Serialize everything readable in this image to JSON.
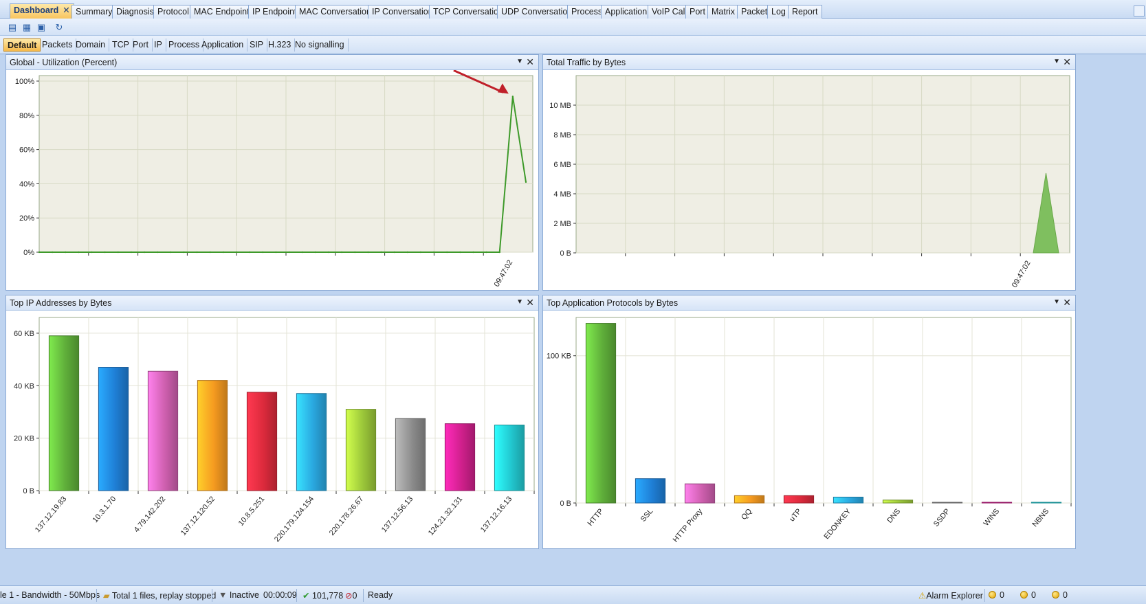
{
  "tabs": [
    {
      "label": "Dashboard",
      "active": true,
      "closable": true
    },
    {
      "label": "Summary"
    },
    {
      "label": "Diagnosis"
    },
    {
      "label": "Protocol"
    },
    {
      "label": "MAC Endpoint"
    },
    {
      "label": "IP Endpoint"
    },
    {
      "label": "MAC Conversation"
    },
    {
      "label": "IP Conversation"
    },
    {
      "label": "TCP Conversation"
    },
    {
      "label": "UDP Conversation"
    },
    {
      "label": "Process"
    },
    {
      "label": "Application"
    },
    {
      "label": "VoIP Call"
    },
    {
      "label": "Port"
    },
    {
      "label": "Matrix"
    },
    {
      "label": "Packet"
    },
    {
      "label": "Log"
    },
    {
      "label": "Report"
    }
  ],
  "tab_close_glyph": "✕",
  "toolbar": {
    "buttons": [
      {
        "name": "new-view-icon",
        "glyph": "▤"
      },
      {
        "name": "edit-view-icon",
        "glyph": "▦"
      },
      {
        "name": "delete-view-icon",
        "glyph": "▣"
      },
      {
        "name": "refresh-icon",
        "glyph": "↻"
      }
    ]
  },
  "filters": [
    "Default",
    "Packets",
    "Domain",
    "TCP",
    "Port",
    "IP",
    "Process",
    "Application",
    "SIP",
    "H.323",
    "No signalling"
  ],
  "panels": {
    "utilization": {
      "title": "Global - Utilization (Percent)",
      "dropdown": "▼",
      "close": "✕"
    },
    "traffic": {
      "title": "Total Traffic by Bytes",
      "dropdown": "▼",
      "close": "✕"
    },
    "top_ip": {
      "title": "Top IP Addresses by Bytes",
      "dropdown": "▼",
      "close": "✕"
    },
    "top_app": {
      "title": "Top Application Protocols by Bytes",
      "dropdown": "▼",
      "close": "✕"
    }
  },
  "colors": {
    "plot_bg": "#efeee4",
    "grid": "#d7d9c4",
    "line": "#3e9a2a",
    "area": "#7fbf5f",
    "annotation_arrow": "#c0202a",
    "bar_palette": [
      "#5fae3a",
      "#1f7fd6",
      "#d060b0",
      "#f59a20",
      "#dc2a3c",
      "#2aa8e0",
      "#9cc83a",
      "#8c8c8c",
      "#d0208c",
      "#22c8d0"
    ]
  },
  "chart_data": [
    {
      "type": "line",
      "panel": "utilization",
      "title": "Global - Utilization (Percent)",
      "yticks": [
        "0%",
        "20%",
        "40%",
        "60%",
        "80%",
        "100%"
      ],
      "ylim": [
        0,
        100
      ],
      "xtick_labels": [
        "09:47:02"
      ],
      "series": [
        {
          "x": [
            0,
            1,
            2,
            3,
            4,
            5,
            6,
            7,
            8,
            9,
            10,
            11,
            12,
            13,
            14,
            15,
            16,
            17,
            18,
            19,
            20,
            21,
            22,
            23,
            24,
            25,
            26,
            27,
            28,
            29,
            30,
            31,
            32,
            33,
            34,
            35,
            36,
            37
          ],
          "values": [
            0,
            0,
            0,
            0,
            0,
            0,
            0,
            0,
            0,
            0,
            0,
            0,
            0,
            0,
            0,
            0,
            0,
            0,
            0,
            0,
            0,
            0,
            0,
            0,
            0,
            0,
            0,
            0,
            0,
            0,
            0,
            0,
            0,
            0,
            0,
            0,
            91,
            41
          ]
        }
      ],
      "annotation": "arrow pointing at peak"
    },
    {
      "type": "area",
      "panel": "traffic",
      "title": "Total Traffic by Bytes",
      "yticks": [
        "0 B",
        "2 MB",
        "4 MB",
        "6 MB",
        "8 MB",
        "10 MB"
      ],
      "ylim": [
        0,
        12
      ],
      "y_unit": "MB",
      "xtick_labels": [
        "09:47:02"
      ],
      "series": [
        {
          "x": [
            36,
            37,
            38
          ],
          "values": [
            0,
            5.4,
            0
          ]
        }
      ]
    },
    {
      "type": "bar",
      "panel": "top_ip",
      "title": "Top IP Addresses by Bytes",
      "yticks": [
        "0 B",
        "20 KB",
        "40 KB",
        "60 KB"
      ],
      "ylim": [
        0,
        66
      ],
      "y_unit": "KB",
      "categories": [
        "137.12.19.83",
        "10.3.1.70",
        "4.79.142.202",
        "137.12.120.52",
        "10.8.5.251",
        "220.179.124.154",
        "220.178.26.67",
        "137.12.56.13",
        "124.21.32.131",
        "137.12.16.13"
      ],
      "values": [
        59,
        47,
        45.5,
        42,
        37.5,
        37,
        31,
        27.5,
        25.5,
        25
      ]
    },
    {
      "type": "bar",
      "panel": "top_app",
      "title": "Top Application Protocols by Bytes",
      "yticks": [
        "0 B",
        "100 KB"
      ],
      "ylim": [
        0,
        126
      ],
      "y_unit": "KB",
      "categories": [
        "HTTP",
        "SSL",
        "HTTP Proxy",
        "QQ",
        "uTP",
        "EDONKEY",
        "DNS",
        "SSDP",
        "WINS",
        "NBNS"
      ],
      "values": [
        122,
        16.5,
        13,
        5,
        5,
        4,
        2,
        0.5,
        0.5,
        0.5
      ]
    }
  ],
  "statusbar": {
    "file": "le 1 - Bandwidth - 50Mbps",
    "replay": "Total 1 files, replay stopped",
    "filter_state": "Inactive",
    "elapsed": "00:00:09",
    "packets": "101,778",
    "dropped": "0",
    "status": "Ready",
    "alarm_explorer": "Alarm Explorer",
    "alarm_counts": [
      "0",
      "0",
      "0"
    ]
  }
}
